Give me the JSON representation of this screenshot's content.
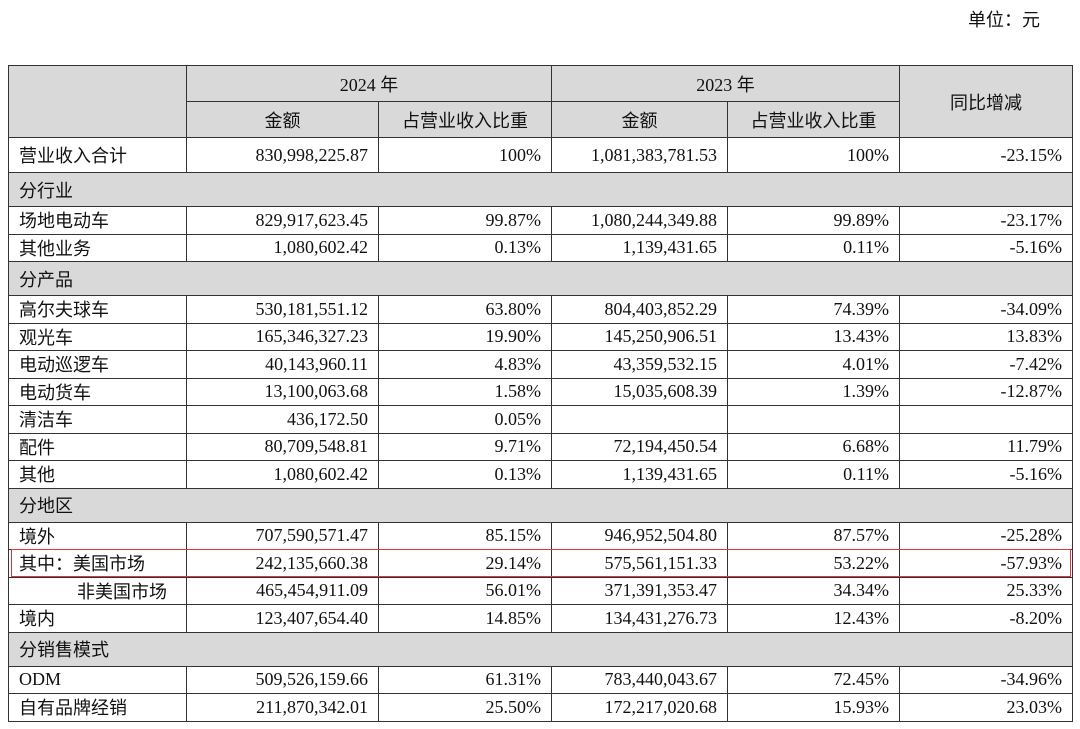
{
  "header": {
    "unit": "单位：元"
  },
  "table": {
    "columns": {
      "year1": "2024 年",
      "year2": "2023 年",
      "change": "同比增减",
      "amount": "金额",
      "share": "占营业收入比重"
    },
    "rows": [
      {
        "label": "营业收入合计",
        "values": [
          "830,998,225.87",
          "100%",
          "1,081,383,781.53",
          "100%",
          "-23.15%"
        ]
      },
      {
        "section": "分行业"
      },
      {
        "label": "场地电动车",
        "values": [
          "829,917,623.45",
          "99.87%",
          "1,080,244,349.88",
          "99.89%",
          "-23.17%"
        ]
      },
      {
        "label": "其他业务",
        "values": [
          "1,080,602.42",
          "0.13%",
          "1,139,431.65",
          "0.11%",
          "-5.16%"
        ]
      },
      {
        "section": "分产品"
      },
      {
        "label": "高尔夫球车",
        "values": [
          "530,181,551.12",
          "63.80%",
          "804,403,852.29",
          "74.39%",
          "-34.09%"
        ]
      },
      {
        "label": "观光车",
        "values": [
          "165,346,327.23",
          "19.90%",
          "145,250,906.51",
          "13.43%",
          "13.83%"
        ]
      },
      {
        "label": "电动巡逻车",
        "values": [
          "40,143,960.11",
          "4.83%",
          "43,359,532.15",
          "4.01%",
          "-7.42%"
        ]
      },
      {
        "label": "电动货车",
        "values": [
          "13,100,063.68",
          "1.58%",
          "15,035,608.39",
          "1.39%",
          "-12.87%"
        ]
      },
      {
        "label": "清洁车",
        "values": [
          "436,172.50",
          "0.05%",
          null,
          null,
          null
        ]
      },
      {
        "label": "配件",
        "values": [
          "80,709,548.81",
          "9.71%",
          "72,194,450.54",
          "6.68%",
          "11.79%"
        ]
      },
      {
        "label": "其他",
        "values": [
          "1,080,602.42",
          "0.13%",
          "1,139,431.65",
          "0.11%",
          "-5.16%"
        ]
      },
      {
        "section": "分地区"
      },
      {
        "label": "境外",
        "values": [
          "707,590,571.47",
          "85.15%",
          "946,952,504.80",
          "87.57%",
          "-25.28%"
        ]
      },
      {
        "label": "其中：美国市场",
        "values": [
          "242,135,660.38",
          "29.14%",
          "575,561,151.33",
          "53.22%",
          "-57.93%"
        ]
      },
      {
        "label": "非美国市场",
        "values": [
          "465,454,911.09",
          "56.01%",
          "371,391,353.47",
          "34.34%",
          "25.33%"
        ]
      },
      {
        "label": "境内",
        "values": [
          "123,407,654.40",
          "14.85%",
          "134,431,276.73",
          "12.43%",
          "-8.20%"
        ]
      },
      {
        "section": "分销售模式"
      },
      {
        "label": "ODM",
        "values": [
          "509,526,159.66",
          "61.31%",
          "783,440,043.67",
          "72.45%",
          "-34.96%"
        ]
      },
      {
        "label": "自有品牌经销",
        "values": [
          "211,870,342.01",
          "25.50%",
          "172,217,020.68",
          "15.93%",
          "23.03%"
        ]
      }
    ]
  }
}
